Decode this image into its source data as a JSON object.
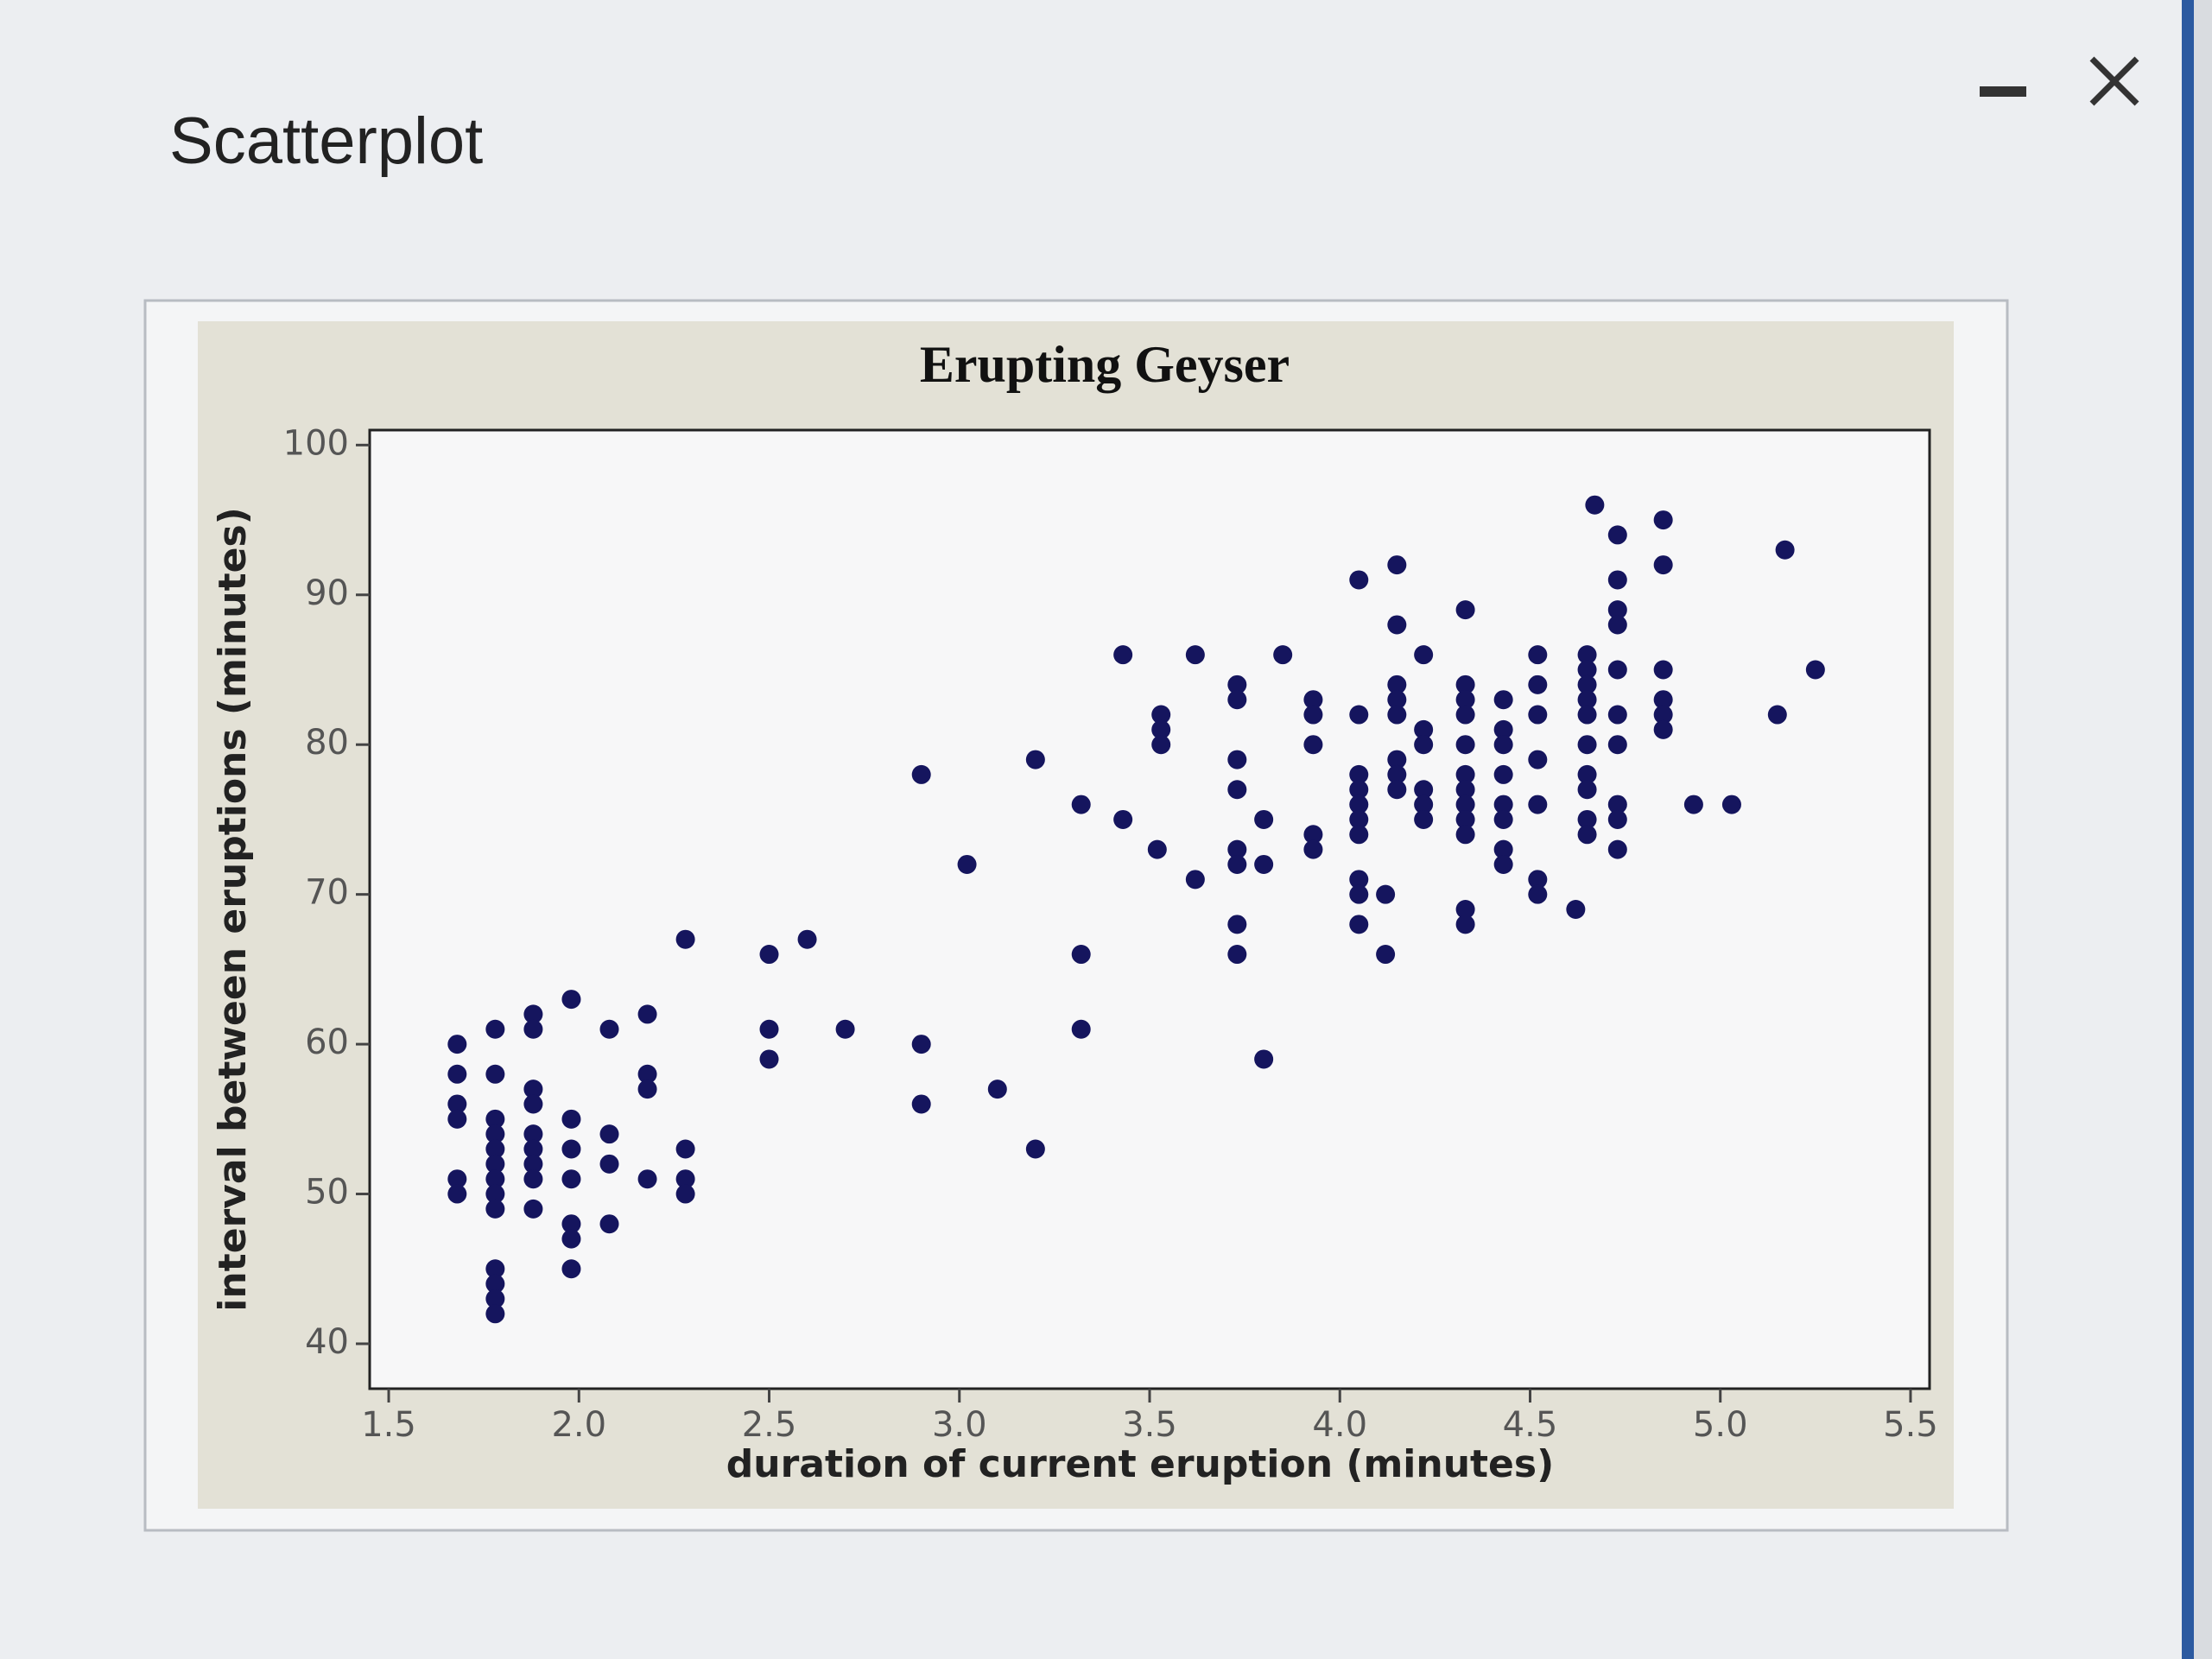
{
  "window": {
    "title": "Scatterplot"
  },
  "chart_data": {
    "type": "scatter",
    "title": "Erupting Geyser",
    "x_label": "duration of current eruption (minutes)",
    "y_label": "interval between eruptions (minutes)",
    "color": "#15155e",
    "xlim": [
      1.45,
      5.55
    ],
    "ylim": [
      37,
      101
    ],
    "xticks": [
      1.5,
      {
        "value": 2,
        "label": "2.0"
      },
      2.5,
      {
        "value": 3,
        "label": "3.0"
      },
      3.5,
      {
        "value": 4,
        "label": "4.0"
      },
      4.5,
      {
        "value": 5,
        "label": "5.0"
      },
      5.5
    ],
    "yticks": [
      40,
      50,
      60,
      70,
      80,
      90,
      100
    ],
    "x": [
      1.68,
      1.68,
      1.68,
      1.68,
      1.68,
      1.68,
      1.78,
      1.78,
      1.78,
      1.78,
      1.78,
      1.78,
      1.78,
      1.78,
      1.78,
      1.78,
      1.78,
      1.78,
      1.78,
      1.88,
      1.88,
      1.88,
      1.88,
      1.88,
      1.88,
      1.88,
      1.88,
      1.88,
      1.98,
      1.98,
      1.98,
      1.98,
      1.98,
      1.98,
      1.98,
      2.08,
      2.08,
      2.08,
      2.08,
      2.18,
      2.18,
      2.18,
      2.18,
      2.28,
      2.28,
      2.28,
      2.28,
      2.5,
      2.5,
      2.5,
      2.6,
      2.7,
      2.9,
      2.9,
      2.9,
      3.02,
      3.1,
      3.2,
      3.2,
      3.32,
      3.32,
      3.32,
      3.43,
      3.43,
      3.53,
      3.53,
      3.53,
      3.52,
      3.62,
      3.62,
      3.73,
      3.73,
      3.73,
      3.73,
      3.73,
      3.73,
      3.73,
      3.73,
      3.8,
      3.8,
      3.8,
      3.85,
      3.93,
      3.93,
      3.93,
      3.93,
      3.93,
      4.05,
      4.05,
      4.05,
      4.05,
      4.05,
      4.05,
      4.05,
      4.05,
      4.05,
      4.05,
      4.12,
      4.12,
      4.15,
      4.15,
      4.15,
      4.15,
      4.15,
      4.15,
      4.15,
      4.15,
      4.22,
      4.22,
      4.22,
      4.22,
      4.22,
      4.22,
      4.33,
      4.33,
      4.33,
      4.33,
      4.33,
      4.33,
      4.33,
      4.33,
      4.33,
      4.33,
      4.33,
      4.33,
      4.43,
      4.43,
      4.43,
      4.43,
      4.43,
      4.43,
      4.43,
      4.43,
      4.52,
      4.52,
      4.52,
      4.52,
      4.52,
      4.52,
      4.52,
      4.62,
      4.65,
      4.65,
      4.65,
      4.65,
      4.65,
      4.65,
      4.65,
      4.65,
      4.65,
      4.65,
      4.67,
      4.73,
      4.73,
      4.73,
      4.73,
      4.73,
      4.73,
      4.73,
      4.73,
      4.73,
      4.73,
      4.85,
      4.85,
      4.85,
      4.85,
      4.85,
      4.85,
      4.93,
      5.03,
      5.15,
      5.17,
      5.25
    ],
    "values": [
      60,
      58,
      56,
      55,
      51,
      50,
      61,
      58,
      55,
      54,
      53,
      52,
      51,
      50,
      49,
      45,
      44,
      43,
      42,
      62,
      61,
      57,
      56,
      54,
      53,
      52,
      51,
      49,
      63,
      55,
      53,
      51,
      48,
      47,
      45,
      61,
      54,
      52,
      48,
      62,
      58,
      57,
      51,
      67,
      53,
      51,
      50,
      66,
      61,
      59,
      67,
      61,
      78,
      60,
      56,
      72,
      57,
      53,
      79,
      76,
      66,
      61,
      86,
      75,
      82,
      81,
      80,
      73,
      86,
      71,
      84,
      83,
      79,
      77,
      73,
      72,
      68,
      66,
      59,
      75,
      72,
      86,
      83,
      82,
      80,
      74,
      73,
      91,
      82,
      78,
      77,
      76,
      75,
      74,
      71,
      70,
      68,
      70,
      66,
      92,
      88,
      84,
      83,
      82,
      79,
      78,
      77,
      86,
      81,
      80,
      77,
      76,
      75,
      89,
      84,
      83,
      82,
      80,
      78,
      77,
      76,
      75,
      74,
      69,
      68,
      83,
      81,
      80,
      78,
      76,
      75,
      73,
      72,
      86,
      84,
      82,
      79,
      76,
      71,
      70,
      69,
      86,
      85,
      84,
      83,
      82,
      80,
      78,
      77,
      75,
      74,
      96,
      94,
      91,
      89,
      88,
      85,
      82,
      80,
      76,
      75,
      73,
      95,
      92,
      85,
      83,
      82,
      81,
      76,
      76,
      82,
      93,
      85
    ]
  }
}
